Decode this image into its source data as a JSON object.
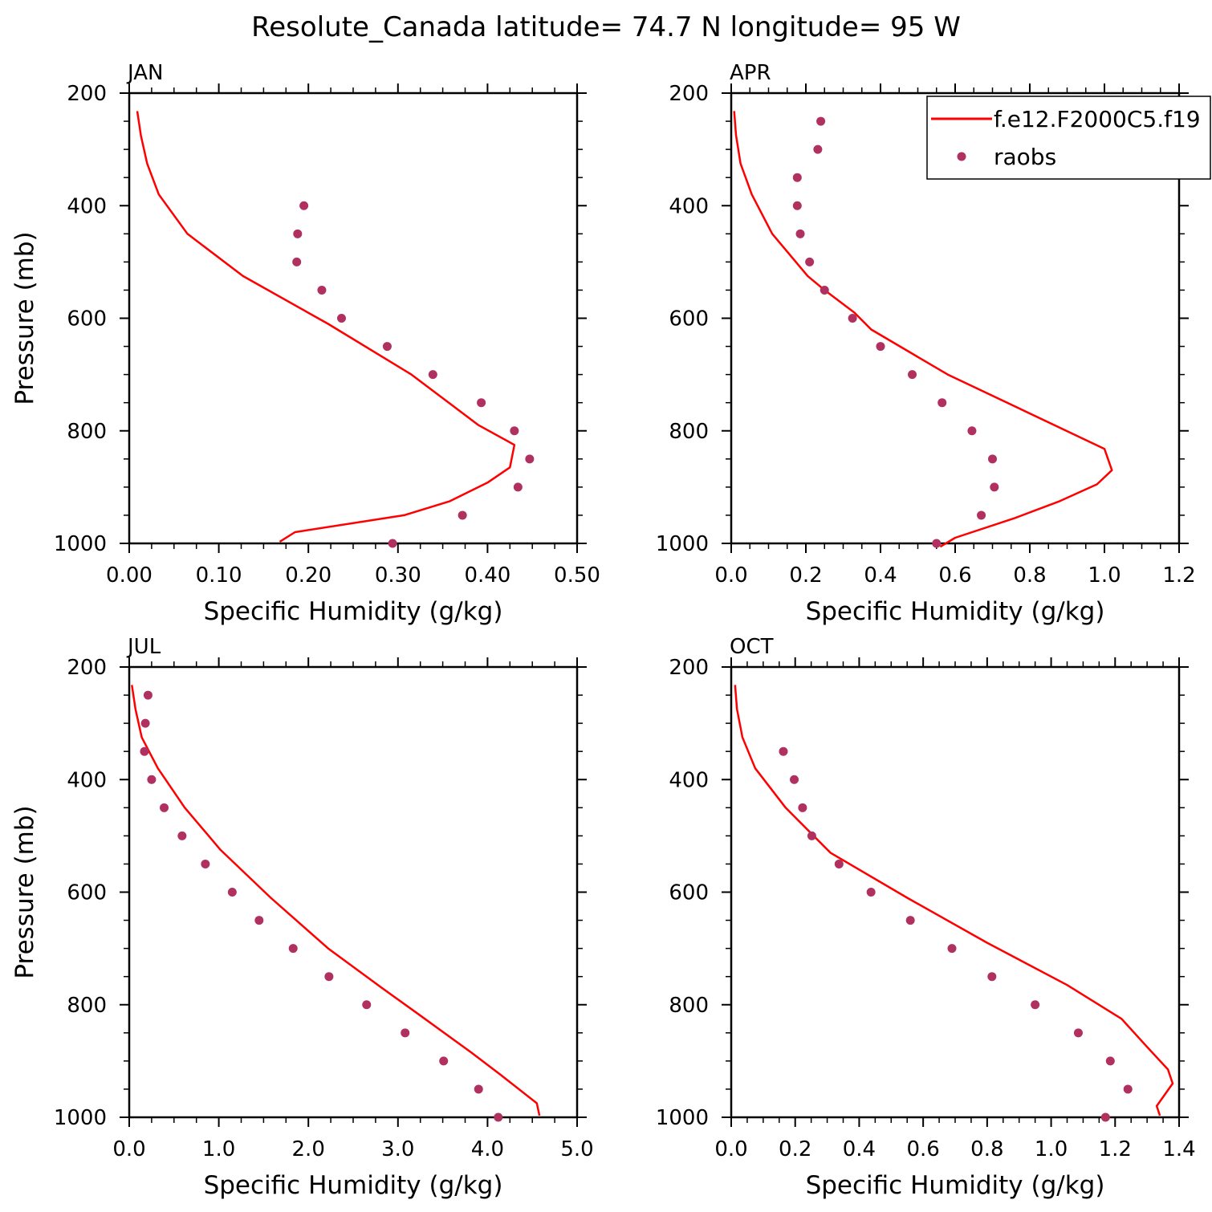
{
  "title": "Resolute_Canada  latitude= 74.7 N longitude= 95 W",
  "colors": {
    "model": "#ff0000",
    "obs": "#b03060",
    "axis": "#000000"
  },
  "legend": {
    "model_label": "f.e12.F2000C5.f19",
    "obs_label": "raobs",
    "placement": "top-right of APR panel"
  },
  "chart_data": [
    {
      "type": "line",
      "panel": "JAN",
      "xlabel": "Specific Humidity (g/kg)",
      "ylabel": "Pressure (mb)",
      "xlim": [
        0,
        0.5
      ],
      "ylim": [
        1000,
        200
      ],
      "xticks": [
        0,
        0.1,
        0.2,
        0.3,
        0.4,
        0.5
      ],
      "xtick_labels": [
        "0.00",
        "0.10",
        "0.20",
        "0.30",
        "0.40",
        "0.50"
      ],
      "yticks": [
        200,
        400,
        600,
        800,
        1000
      ],
      "ytick_labels": [
        "200",
        "400",
        "600",
        "800",
        "1000"
      ],
      "series": [
        {
          "name": "f.e12.F2000C5.f19",
          "kind": "line",
          "x": [
            0.009,
            0.013,
            0.02,
            0.033,
            0.065,
            0.127,
            0.222,
            0.315,
            0.39,
            0.43,
            0.425,
            0.4,
            0.358,
            0.307,
            0.185,
            0.168
          ],
          "y": [
            232,
            275,
            325,
            380,
            450,
            525,
            610,
            700,
            790,
            825,
            865,
            892,
            925,
            950,
            980,
            997
          ]
        },
        {
          "name": "raobs",
          "kind": "scatter",
          "x": [
            0.195,
            0.188,
            0.187,
            0.215,
            0.237,
            0.288,
            0.339,
            0.393,
            0.43,
            0.447,
            0.434,
            0.372,
            0.294
          ],
          "y": [
            400,
            450,
            500,
            550,
            600,
            650,
            700,
            750,
            800,
            850,
            900,
            950,
            1000
          ]
        }
      ]
    },
    {
      "type": "line",
      "panel": "APR",
      "xlabel": "Specific Humidity (g/kg)",
      "ylabel": "",
      "xlim": [
        0,
        1.2
      ],
      "ylim": [
        1000,
        200
      ],
      "xticks": [
        0,
        0.2,
        0.4,
        0.6,
        0.8,
        1.0,
        1.2
      ],
      "xtick_labels": [
        "0.0",
        "0.2",
        "0.4",
        "0.6",
        "0.8",
        "1.0",
        "1.2"
      ],
      "yticks": [
        200,
        400,
        600,
        800,
        1000
      ],
      "ytick_labels": [
        "200",
        "400",
        "600",
        "800",
        "1000"
      ],
      "series": [
        {
          "name": "f.e12.F2000C5.f19",
          "kind": "line",
          "x": [
            0.008,
            0.013,
            0.025,
            0.055,
            0.11,
            0.205,
            0.25,
            0.33,
            0.375,
            0.58,
            1.0,
            1.02,
            0.98,
            0.88,
            0.76,
            0.6,
            0.56
          ],
          "y": [
            232,
            275,
            325,
            380,
            450,
            525,
            550,
            590,
            620,
            700,
            832,
            870,
            895,
            925,
            955,
            990,
            1006
          ]
        },
        {
          "name": "raobs",
          "kind": "scatter",
          "x": [
            0.24,
            0.232,
            0.177,
            0.177,
            0.185,
            0.21,
            0.25,
            0.325,
            0.4,
            0.485,
            0.565,
            0.645,
            0.7,
            0.705,
            0.67,
            0.55
          ],
          "y": [
            250,
            300,
            350,
            400,
            450,
            500,
            550,
            600,
            650,
            700,
            750,
            800,
            850,
            900,
            950,
            1000
          ]
        }
      ]
    },
    {
      "type": "line",
      "panel": "JUL",
      "xlabel": "Specific Humidity (g/kg)",
      "ylabel": "Pressure (mb)",
      "xlim": [
        0,
        5
      ],
      "ylim": [
        1000,
        200
      ],
      "xticks": [
        0,
        1,
        2,
        3,
        4,
        5
      ],
      "xtick_labels": [
        "0.0",
        "1.0",
        "2.0",
        "3.0",
        "4.0",
        "5.0"
      ],
      "yticks": [
        200,
        400,
        600,
        800,
        1000
      ],
      "ytick_labels": [
        "200",
        "400",
        "600",
        "800",
        "1000"
      ],
      "series": [
        {
          "name": "f.e12.F2000C5.f19",
          "kind": "line",
          "x": [
            0.03,
            0.07,
            0.14,
            0.32,
            0.62,
            1.02,
            1.58,
            2.22,
            2.82,
            3.3,
            3.82,
            4.15,
            4.55,
            4.58
          ],
          "y": [
            232,
            275,
            325,
            380,
            450,
            525,
            610,
            700,
            770,
            825,
            885,
            925,
            975,
            997
          ]
        },
        {
          "name": "raobs",
          "kind": "scatter",
          "x": [
            0.21,
            0.18,
            0.17,
            0.25,
            0.39,
            0.59,
            0.85,
            1.15,
            1.45,
            1.83,
            2.23,
            2.65,
            3.08,
            3.51,
            3.9,
            4.12
          ],
          "y": [
            250,
            300,
            350,
            400,
            450,
            500,
            550,
            600,
            650,
            700,
            750,
            800,
            850,
            900,
            950,
            1000
          ]
        }
      ]
    },
    {
      "type": "line",
      "panel": "OCT",
      "xlabel": "Specific Humidity (g/kg)",
      "ylabel": "",
      "xlim": [
        0,
        1.4
      ],
      "ylim": [
        1000,
        200
      ],
      "xticks": [
        0,
        0.2,
        0.4,
        0.6,
        0.8,
        1.0,
        1.2,
        1.4
      ],
      "xtick_labels": [
        "0.0",
        "0.2",
        "0.4",
        "0.6",
        "0.8",
        "1.0",
        "1.2",
        "1.4"
      ],
      "yticks": [
        200,
        400,
        600,
        800,
        1000
      ],
      "ytick_labels": [
        "200",
        "400",
        "600",
        "800",
        "1000"
      ],
      "series": [
        {
          "name": "f.e12.F2000C5.f19",
          "kind": "line",
          "x": [
            0.012,
            0.018,
            0.035,
            0.075,
            0.17,
            0.31,
            0.55,
            0.8,
            1.05,
            1.22,
            1.3,
            1.365,
            1.38,
            1.33,
            1.34
          ],
          "y": [
            232,
            275,
            325,
            380,
            450,
            530,
            610,
            690,
            765,
            825,
            875,
            915,
            940,
            980,
            997
          ]
        },
        {
          "name": "raobs",
          "kind": "scatter",
          "x": [
            0.163,
            0.197,
            0.223,
            0.252,
            0.337,
            0.437,
            0.56,
            0.69,
            0.815,
            0.95,
            1.085,
            1.185,
            1.24,
            1.17
          ],
          "y": [
            350,
            400,
            450,
            500,
            550,
            600,
            650,
            700,
            750,
            800,
            850,
            900,
            950,
            1000
          ]
        }
      ]
    }
  ]
}
